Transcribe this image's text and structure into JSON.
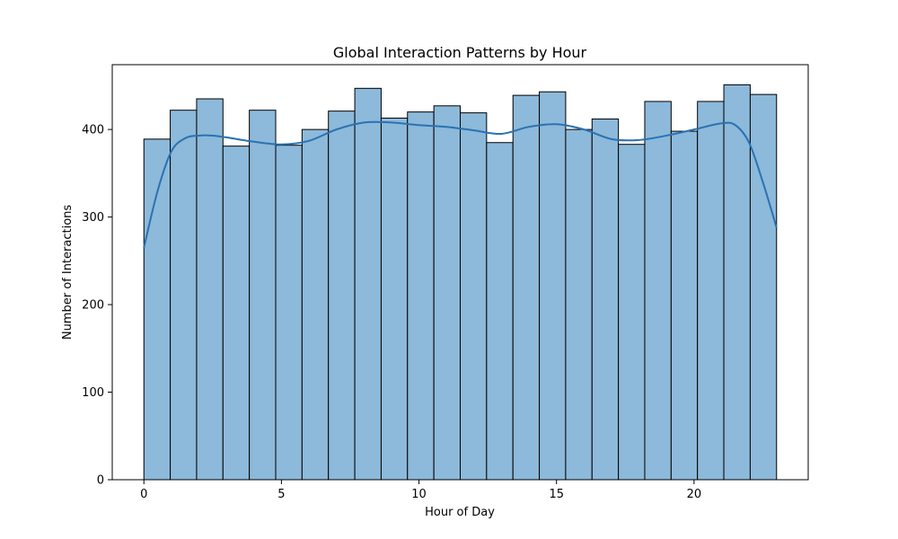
{
  "chart_data": {
    "type": "bar",
    "subtype": "histogram-with-kde",
    "title": "Global Interaction Patterns by Hour",
    "xlabel": "Hour of Day",
    "ylabel": "Number of Interactions",
    "xlim": [
      -1.15,
      24.15
    ],
    "ylim": [
      0,
      474
    ],
    "xticks": [
      0,
      5,
      10,
      15,
      20
    ],
    "yticks": [
      0,
      100,
      200,
      300,
      400
    ],
    "grid": false,
    "legend": "none",
    "bins": [
      {
        "x0": 0.0,
        "x1": 0.958,
        "value": 389
      },
      {
        "x0": 0.958,
        "x1": 1.917,
        "value": 422
      },
      {
        "x0": 1.917,
        "x1": 2.875,
        "value": 435
      },
      {
        "x0": 2.875,
        "x1": 3.833,
        "value": 381
      },
      {
        "x0": 3.833,
        "x1": 4.792,
        "value": 422
      },
      {
        "x0": 4.792,
        "x1": 5.75,
        "value": 382
      },
      {
        "x0": 5.75,
        "x1": 6.708,
        "value": 400
      },
      {
        "x0": 6.708,
        "x1": 7.667,
        "value": 421
      },
      {
        "x0": 7.667,
        "x1": 8.625,
        "value": 447
      },
      {
        "x0": 8.625,
        "x1": 9.583,
        "value": 413
      },
      {
        "x0": 9.583,
        "x1": 10.542,
        "value": 420
      },
      {
        "x0": 10.542,
        "x1": 11.5,
        "value": 427
      },
      {
        "x0": 11.5,
        "x1": 12.458,
        "value": 419
      },
      {
        "x0": 12.458,
        "x1": 13.417,
        "value": 385
      },
      {
        "x0": 13.417,
        "x1": 14.375,
        "value": 439
      },
      {
        "x0": 14.375,
        "x1": 15.333,
        "value": 443
      },
      {
        "x0": 15.333,
        "x1": 16.292,
        "value": 400
      },
      {
        "x0": 16.292,
        "x1": 17.25,
        "value": 412
      },
      {
        "x0": 17.25,
        "x1": 18.208,
        "value": 383
      },
      {
        "x0": 18.208,
        "x1": 19.167,
        "value": 432
      },
      {
        "x0": 19.167,
        "x1": 20.125,
        "value": 398
      },
      {
        "x0": 20.125,
        "x1": 21.083,
        "value": 432
      },
      {
        "x0": 21.083,
        "x1": 22.042,
        "value": 451
      },
      {
        "x0": 22.042,
        "x1": 23.0,
        "value": 440
      }
    ],
    "kde": {
      "x": [
        0,
        0.5,
        1,
        1.5,
        2,
        2.5,
        3,
        4,
        5,
        6,
        7,
        8,
        9,
        10,
        11,
        12,
        13,
        14,
        15,
        16,
        17,
        18,
        19,
        20,
        21,
        21.5,
        22,
        22.5,
        23
      ],
      "y": [
        265,
        330,
        375,
        390,
        393,
        393,
        391,
        386,
        383,
        387,
        400,
        408,
        408,
        405,
        403,
        399,
        395,
        403,
        406,
        400,
        389,
        388,
        393,
        400,
        407,
        405,
        385,
        340,
        288
      ]
    },
    "colors": {
      "bar_fill": "#8db9da",
      "bar_edge": "#000000",
      "kde_line": "#2a72b2"
    }
  }
}
